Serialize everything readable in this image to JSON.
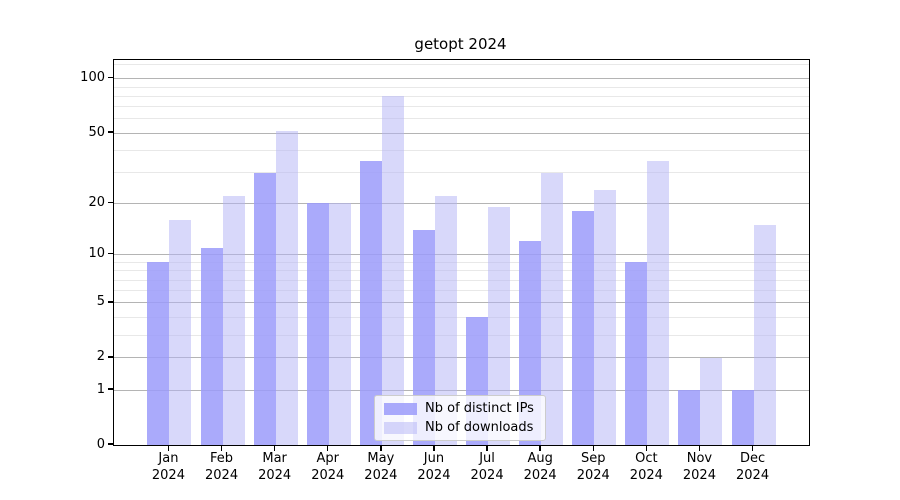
{
  "title": "getopt 2024",
  "chart_data": {
    "type": "bar",
    "title": "getopt 2024",
    "categories": [
      "Jan 2024",
      "Feb 2024",
      "Mar 2024",
      "Apr 2024",
      "May 2024",
      "Jun 2024",
      "Jul 2024",
      "Aug 2024",
      "Sep 2024",
      "Oct 2024",
      "Nov 2024",
      "Dec 2024"
    ],
    "series": [
      {
        "name": "Nb of distinct IPs",
        "values": [
          9,
          11,
          30,
          20,
          35,
          14,
          4,
          12,
          18,
          9,
          1,
          1
        ],
        "color": "rgba(155,155,250,0.85)",
        "color_hex": "#aaaafa"
      },
      {
        "name": "Nb of downloads",
        "values": [
          16,
          22,
          51,
          20,
          80,
          22,
          19,
          30,
          24,
          35,
          2,
          15
        ],
        "color": "rgba(177,177,245,0.5)",
        "color_hex": "#d8d8fa"
      }
    ],
    "xlabel": "",
    "ylabel": "",
    "yscale": "log1p",
    "ylim": [
      0,
      127
    ],
    "yticks_major": [
      0,
      1,
      2,
      5,
      10,
      20,
      50,
      100
    ],
    "yticks_minor": [
      3,
      4,
      6,
      7,
      8,
      9,
      30,
      40,
      60,
      70,
      80,
      90,
      120
    ],
    "grid": true,
    "legend_position": "lower center",
    "colors": {
      "grid_major": "#b4b4b4",
      "grid_minor": "#e8e8e8",
      "spine": "#000000",
      "background": "#ffffff"
    }
  }
}
